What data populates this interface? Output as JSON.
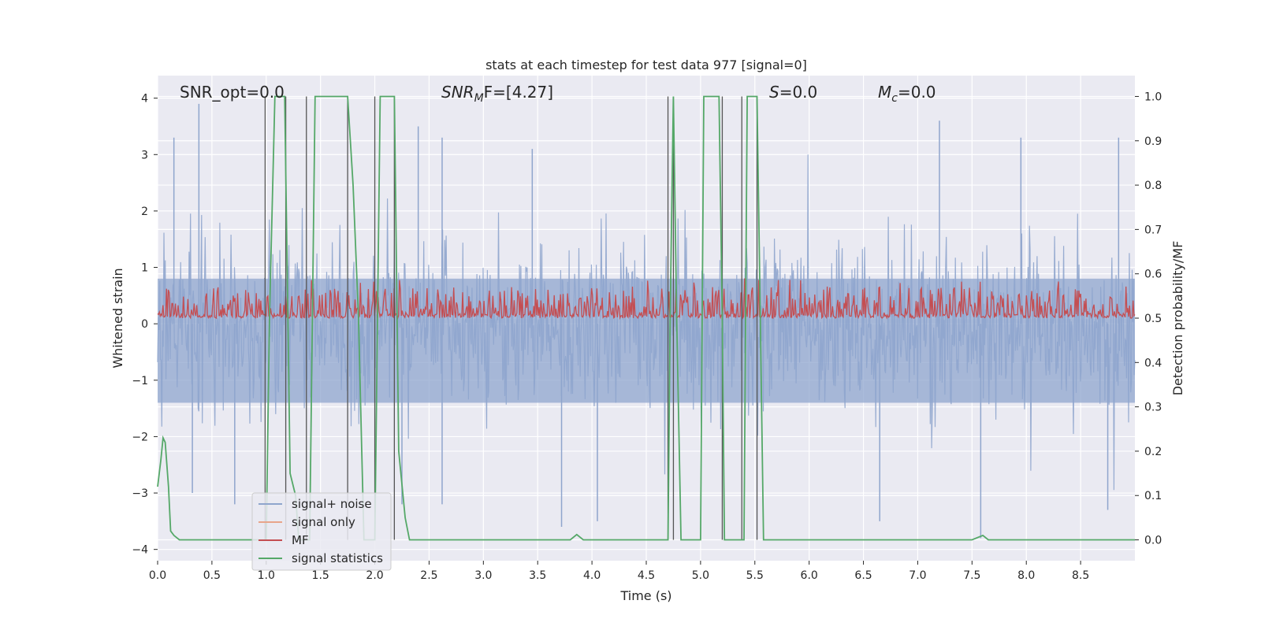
{
  "chart_data": {
    "type": "line",
    "title": "stats at each timestep for test data 977 [signal=0]",
    "xlabel": "Time (s)",
    "ylabel": "Whitened strain",
    "y2label": "Detection probability/MF",
    "xlim": [
      0.0,
      9.0
    ],
    "ylim": [
      -4.2,
      4.4
    ],
    "y2lim": [
      -0.047,
      1.047
    ],
    "x_ticks": [
      "0.0",
      "0.5",
      "1.0",
      "1.5",
      "2.0",
      "2.5",
      "3.0",
      "3.5",
      "4.0",
      "4.5",
      "5.0",
      "5.5",
      "6.0",
      "6.5",
      "7.0",
      "7.5",
      "8.0",
      "8.5"
    ],
    "y_ticks": [
      "4",
      "3",
      "2",
      "1",
      "0",
      "−1",
      "−2",
      "−3",
      "−4"
    ],
    "y2_ticks": [
      "1.0",
      "0.9",
      "0.8",
      "0.7",
      "0.6",
      "0.5",
      "0.4",
      "0.3",
      "0.2",
      "0.1",
      "0.0"
    ],
    "grid": true,
    "legend_position": "lower-left",
    "legend": [
      {
        "label": "signal+ noise",
        "color": "#8fa5cd"
      },
      {
        "label": "signal only",
        "color": "#e8a58a"
      },
      {
        "label": "MF",
        "color": "#c44e52"
      },
      {
        "label": "signal statistics",
        "color": "#55a868"
      }
    ],
    "annotations": {
      "snr_opt": "SNR_opt=0.0",
      "snr_mf_main": "SNR",
      "snr_mf_sub": "M",
      "snr_mf_rest": "F=[4.27]",
      "s_main": "S",
      "s_rest": "=0.0",
      "mc_main": "M",
      "mc_sub": "c",
      "mc_rest": "=0.0"
    },
    "series": [
      {
        "name": "signal+ noise",
        "description_values": "whitened noise band roughly within -2 to 2.5 with spikes up to ~4 and down to ~-3.8",
        "envelope_typical": [
          -2.0,
          2.5
        ],
        "peaks_x": [
          0.38,
          0.15,
          2.4,
          2.62,
          3.45,
          7.95,
          8.85,
          7.2
        ],
        "peaks_y": [
          3.9,
          3.3,
          3.5,
          3.3,
          3.1,
          3.3,
          3.3,
          3.6
        ],
        "troughs_x": [
          0.32,
          0.71,
          2.25,
          2.62,
          3.72,
          4.05,
          6.65,
          7.58,
          8.75
        ],
        "troughs_y": [
          -3.0,
          -3.2,
          -3.2,
          -3.2,
          -3.6,
          -3.5,
          -3.5,
          -3.8,
          -3.3
        ]
      },
      {
        "name": "MF",
        "axis": "right",
        "typical_range": [
          0.5,
          0.57
        ],
        "max_value": 0.59
      },
      {
        "name": "signal statistics",
        "axis": "right",
        "x": [
          0.0,
          0.03,
          0.05,
          0.07,
          0.1,
          0.12,
          0.15,
          0.2,
          0.25,
          0.3,
          0.5,
          0.9,
          0.98,
          1.0,
          1.03,
          1.08,
          1.12,
          1.17,
          1.2,
          1.22,
          1.27,
          1.3,
          1.35,
          1.4,
          1.45,
          1.5,
          1.55,
          1.6,
          1.65,
          1.7,
          1.75,
          1.8,
          1.85,
          1.88,
          1.9,
          1.95,
          2.0,
          2.05,
          2.08,
          2.12,
          2.18,
          2.22,
          2.28,
          2.32,
          2.5,
          3.0,
          3.5,
          3.8,
          3.86,
          3.92,
          4.0,
          4.5,
          4.7,
          4.72,
          4.75,
          4.78,
          4.82,
          4.85,
          4.9,
          4.95,
          5.0,
          5.03,
          5.07,
          5.13,
          5.17,
          5.2,
          5.22,
          5.25,
          5.3,
          5.35,
          5.4,
          5.43,
          5.47,
          5.52,
          5.55,
          5.58,
          5.6,
          5.8,
          6.5,
          7.0,
          7.5,
          7.6,
          7.65,
          7.7,
          8.0,
          8.5,
          9.0
        ],
        "y": [
          0.12,
          0.18,
          0.23,
          0.22,
          0.12,
          0.02,
          0.01,
          0.0,
          0.0,
          0.0,
          0.0,
          0.0,
          0.0,
          0.0,
          0.5,
          1.0,
          1.0,
          1.0,
          0.5,
          0.15,
          0.1,
          0.0,
          0.0,
          0.0,
          1.0,
          1.0,
          1.0,
          1.0,
          1.0,
          1.0,
          1.0,
          0.8,
          0.5,
          0.2,
          0.0,
          0.0,
          0.0,
          1.0,
          1.0,
          1.0,
          1.0,
          0.2,
          0.05,
          0.0,
          0.0,
          0.0,
          0.0,
          0.0,
          0.012,
          0.0,
          0.0,
          0.0,
          0.0,
          0.5,
          1.0,
          0.5,
          0.0,
          0.0,
          0.0,
          0.0,
          0.0,
          1.0,
          1.0,
          1.0,
          1.0,
          0.5,
          0.0,
          0.0,
          0.0,
          0.0,
          0.0,
          1.0,
          1.0,
          1.0,
          0.5,
          0.0,
          0.0,
          0.0,
          0.0,
          0.0,
          0.0,
          0.01,
          0.0,
          0.0,
          0.0,
          0.0,
          0.0
        ]
      },
      {
        "name": "vertical markers",
        "x": [
          0.99,
          1.18,
          1.37,
          1.75,
          2.0,
          2.18,
          4.7,
          4.75,
          5.2,
          5.38,
          5.52
        ]
      }
    ]
  }
}
